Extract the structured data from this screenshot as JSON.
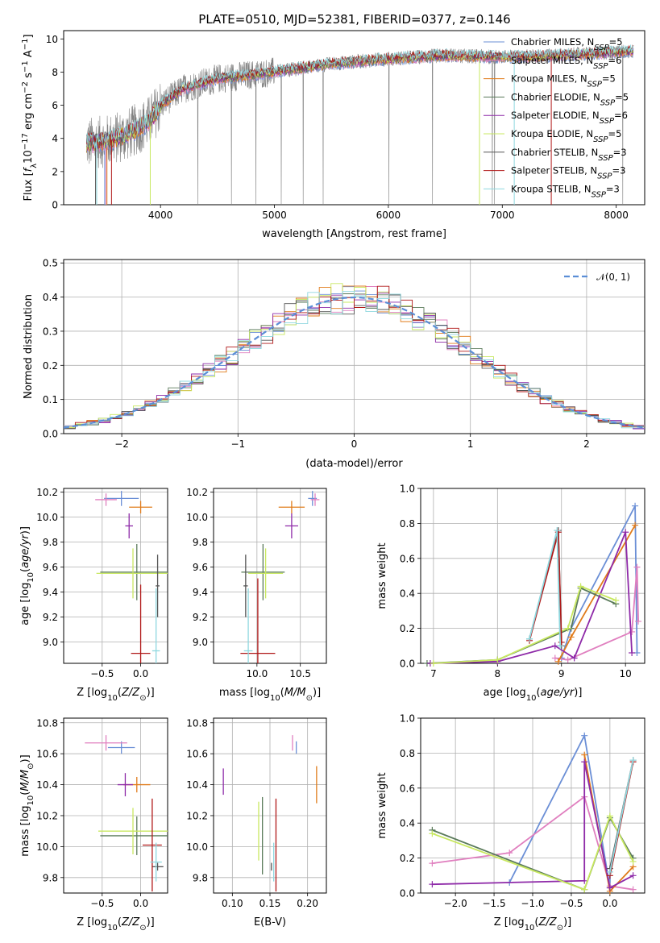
{
  "figure": {
    "title": "PLATE=0510, MJD=52381, FIBERID=0377, z=0.146"
  },
  "colors": {
    "Chabrier MILES": "#6b8fd6",
    "Salpeter MILES": "#e07fbf",
    "Kroupa MILES": "#e07b1a",
    "Chabrier ELODIE": "#5a7a5a",
    "Salpeter ELODIE": "#8e2aa8",
    "Kroupa ELODIE": "#c8e860",
    "Chabrier STELIB": "#555555",
    "Salpeter STELIB": "#b01818",
    "Kroupa STELIB": "#8fd8df",
    "data": "#808080",
    "normal": "#5b8ed6"
  },
  "chart_data": [
    {
      "id": "spectrum",
      "type": "line",
      "title": "PLATE=0510, MJD=52381, FIBERID=0377, z=0.146",
      "xlabel": "wavelength [Angstrom, rest frame]",
      "ylabel": "Flux [f_λ10^-17 erg cm^-2 s^-1 A^-1]",
      "xlim": [
        3150,
        8250
      ],
      "ylim": [
        0,
        10.5
      ],
      "xticks": [
        4000,
        5000,
        6000,
        7000,
        8000
      ],
      "yticks": [
        0,
        2,
        4,
        6,
        8,
        10
      ],
      "grid": false,
      "legend_position": "right",
      "data_continuum": {
        "x": [
          3350,
          3500,
          3700,
          3900,
          4000,
          4200,
          4500,
          5000,
          5500,
          6000,
          6500,
          7000,
          7500,
          8000,
          8150
        ],
        "y": [
          3.7,
          3.8,
          4.2,
          5.0,
          6.0,
          7.0,
          7.6,
          8.0,
          8.5,
          8.8,
          9.0,
          8.9,
          9.0,
          9.2,
          9.3
        ]
      },
      "legend": [
        "Chabrier MILES, N_SSP=5",
        "Salpeter MILES, N_SSP=6",
        "Kroupa MILES, N_SSP=5",
        "Chabrier ELODIE, N_SSP=5",
        "Salpeter ELODIE, N_SSP=6",
        "Kroupa ELODIE, N_SSP=5",
        "Chabrier STELIB, N_SSP=3",
        "Salpeter STELIB, N_SSP=3",
        "Kroupa STELIB, N_SSP=3"
      ]
    },
    {
      "id": "residuals",
      "type": "histogram",
      "xlabel": "(data-model)/error",
      "ylabel": "Normed distribution",
      "xlim": [
        -2.5,
        2.5
      ],
      "ylim": [
        0,
        0.51
      ],
      "xticks": [
        -2,
        -1,
        0,
        1,
        2
      ],
      "yticks": [
        0.0,
        0.1,
        0.2,
        0.3,
        0.4,
        0.5
      ],
      "grid": true,
      "legend_position": "top-right",
      "legend": [
        "𝒩(0, 1)"
      ],
      "bin_width": 0.1
    },
    {
      "id": "age_vs_Z",
      "type": "scatter",
      "xlabel": "Z [log10(Z/Z⊙)]",
      "ylabel": "age [log10(age/yr)]",
      "xlim": [
        -1.0,
        0.35
      ],
      "ylim": [
        8.83,
        10.23
      ],
      "xticks": [
        -0.5,
        0.0
      ],
      "yticks": [
        9.0,
        9.2,
        9.4,
        9.6,
        9.8,
        10.0,
        10.2
      ],
      "grid": true,
      "points": [
        {
          "model": "Chabrier MILES",
          "x": -0.25,
          "xerr": 0.45,
          "y": 10.15,
          "yerr": 0.12
        },
        {
          "model": "Salpeter MILES",
          "x": -0.45,
          "xerr": 0.28,
          "y": 10.14,
          "yerr": 0.1
        },
        {
          "model": "Kroupa MILES",
          "x": 0.0,
          "xerr": 0.3,
          "y": 10.08,
          "yerr": 0.1
        },
        {
          "model": "Chabrier ELODIE",
          "x": -0.05,
          "xerr": 0.95,
          "y": 9.56,
          "yerr": 0.45
        },
        {
          "model": "Salpeter ELODIE",
          "x": -0.15,
          "xerr": 0.1,
          "y": 9.93,
          "yerr": 0.2
        },
        {
          "model": "Kroupa ELODIE",
          "x": -0.1,
          "xerr": 0.95,
          "y": 9.55,
          "yerr": 0.4
        },
        {
          "model": "Chabrier STELIB",
          "x": 0.22,
          "xerr": 0.05,
          "y": 9.45,
          "yerr": 0.5
        },
        {
          "model": "Salpeter STELIB",
          "x": 0.0,
          "xerr": 0.25,
          "y": 8.91,
          "yerr": 1.1
        },
        {
          "model": "Kroupa STELIB",
          "x": 0.2,
          "xerr": 0.1,
          "y": 8.93,
          "yerr": 1.0
        }
      ]
    },
    {
      "id": "age_vs_mass",
      "type": "scatter",
      "xlabel": "mass [log10(M/M⊙)]",
      "ylabel": "",
      "xlim": [
        9.5,
        10.8
      ],
      "ylim": [
        8.83,
        10.23
      ],
      "xticks": [
        10.0,
        10.5
      ],
      "yticks": [
        9.0,
        9.2,
        9.4,
        9.6,
        9.8,
        10.0,
        10.2
      ],
      "grid": true,
      "points": [
        {
          "model": "Chabrier MILES",
          "x": 10.64,
          "xerr": 0.1,
          "y": 10.15,
          "yerr": 0.12
        },
        {
          "model": "Salpeter MILES",
          "x": 10.67,
          "xerr": 0.1,
          "y": 10.14,
          "yerr": 0.1
        },
        {
          "model": "Kroupa MILES",
          "x": 10.4,
          "xerr": 0.3,
          "y": 10.08,
          "yerr": 0.1
        },
        {
          "model": "Chabrier ELODIE",
          "x": 10.07,
          "xerr": 0.5,
          "y": 9.56,
          "yerr": 0.45
        },
        {
          "model": "Salpeter ELODIE",
          "x": 10.4,
          "xerr": 0.15,
          "y": 9.93,
          "yerr": 0.2
        },
        {
          "model": "Kroupa ELODIE",
          "x": 10.1,
          "xerr": 0.4,
          "y": 9.55,
          "yerr": 0.4
        },
        {
          "model": "Chabrier STELIB",
          "x": 9.87,
          "xerr": 0.05,
          "y": 9.45,
          "yerr": 0.5
        },
        {
          "model": "Salpeter STELIB",
          "x": 10.01,
          "xerr": 0.4,
          "y": 8.91,
          "yerr": 1.2
        },
        {
          "model": "Kroupa STELIB",
          "x": 9.9,
          "xerr": 0.1,
          "y": 8.93,
          "yerr": 1.0
        }
      ]
    },
    {
      "id": "weight_vs_age",
      "type": "line",
      "xlabel": "age [log10(age/yr)]",
      "ylabel": "mass weight",
      "xlim": [
        6.8,
        10.3
      ],
      "ylim": [
        0,
        1.0
      ],
      "xticks": [
        7,
        8,
        9,
        10
      ],
      "yticks": [
        0.0,
        0.2,
        0.4,
        0.6,
        0.8,
        1.0
      ],
      "grid": true,
      "series": [
        {
          "model": "Chabrier MILES",
          "points": [
            [
              9.0,
              0.03
            ],
            [
              9.15,
              0.2
            ],
            [
              10.15,
              0.9
            ],
            [
              10.18,
              0.06
            ]
          ]
        },
        {
          "model": "Salpeter MILES",
          "points": [
            [
              8.9,
              0.03
            ],
            [
              9.1,
              0.02
            ],
            [
              10.1,
              0.18
            ],
            [
              10.18,
              0.55
            ],
            [
              10.2,
              0.24
            ]
          ]
        },
        {
          "model": "Kroupa MILES",
          "points": [
            [
              8.95,
              0.01
            ],
            [
              9.15,
              0.15
            ],
            [
              10.15,
              0.79
            ]
          ]
        },
        {
          "model": "Chabrier ELODIE",
          "points": [
            [
              6.9,
              0.0
            ],
            [
              8.0,
              0.02
            ],
            [
              9.15,
              0.2
            ],
            [
              9.3,
              0.43
            ],
            [
              9.85,
              0.34
            ]
          ]
        },
        {
          "model": "Salpeter ELODIE",
          "points": [
            [
              6.95,
              0.0
            ],
            [
              8.0,
              0.01
            ],
            [
              8.9,
              0.1
            ],
            [
              9.2,
              0.03
            ],
            [
              10.0,
              0.75
            ],
            [
              10.1,
              0.06
            ]
          ]
        },
        {
          "model": "Kroupa ELODIE",
          "points": [
            [
              7.0,
              0.0
            ],
            [
              8.0,
              0.02
            ],
            [
              9.1,
              0.2
            ],
            [
              9.3,
              0.44
            ],
            [
              9.85,
              0.36
            ]
          ]
        },
        {
          "model": "Chabrier STELIB",
          "points": [
            [
              8.5,
              0.14
            ],
            [
              8.95,
              0.76
            ],
            [
              9.0,
              0.1
            ]
          ]
        },
        {
          "model": "Salpeter STELIB",
          "points": [
            [
              8.5,
              0.13
            ],
            [
              8.95,
              0.75
            ],
            [
              9.0,
              0.12
            ]
          ]
        },
        {
          "model": "Kroupa STELIB",
          "points": [
            [
              8.5,
              0.14
            ],
            [
              8.93,
              0.76
            ],
            [
              8.98,
              0.1
            ]
          ]
        }
      ]
    },
    {
      "id": "mass_vs_Z",
      "type": "scatter",
      "xlabel": "Z [log10(Z/Z⊙)]",
      "ylabel": "mass [log10(M/M⊙)]",
      "xlim": [
        -1.0,
        0.35
      ],
      "ylim": [
        9.7,
        10.83
      ],
      "xticks": [
        -0.5,
        0.0
      ],
      "yticks": [
        9.8,
        10.0,
        10.2,
        10.4,
        10.6,
        10.8
      ],
      "grid": true,
      "points": [
        {
          "model": "Chabrier MILES",
          "x": -0.25,
          "xerr": 0.35,
          "y": 10.64,
          "yerr": 0.08
        },
        {
          "model": "Salpeter MILES",
          "x": -0.45,
          "xerr": 0.55,
          "y": 10.67,
          "yerr": 0.1
        },
        {
          "model": "Kroupa MILES",
          "x": -0.05,
          "xerr": 0.35,
          "y": 10.4,
          "yerr": 0.1
        },
        {
          "model": "Chabrier ELODIE",
          "x": -0.05,
          "xerr": 0.95,
          "y": 10.07,
          "yerr": 0.25
        },
        {
          "model": "Salpeter ELODIE",
          "x": -0.2,
          "xerr": 0.2,
          "y": 10.4,
          "yerr": 0.15
        },
        {
          "model": "Kroupa ELODIE",
          "x": -0.1,
          "xerr": 0.9,
          "y": 10.1,
          "yerr": 0.3
        },
        {
          "model": "Chabrier STELIB",
          "x": 0.22,
          "xerr": 0.15,
          "y": 9.87,
          "yerr": 0.05
        },
        {
          "model": "Salpeter STELIB",
          "x": 0.15,
          "xerr": 0.25,
          "y": 10.01,
          "yerr": 0.6
        },
        {
          "model": "Kroupa STELIB",
          "x": 0.2,
          "xerr": 0.15,
          "y": 9.9,
          "yerr": 0.25
        }
      ]
    },
    {
      "id": "mass_vs_EBV",
      "type": "scatter",
      "xlabel": "E(B-V)",
      "ylabel": "",
      "xlim": [
        0.075,
        0.225
      ],
      "ylim": [
        9.7,
        10.83
      ],
      "xticks": [
        0.1,
        0.15,
        0.2
      ],
      "xtick_labels": [
        "0.10",
        "0.15",
        "0.20"
      ],
      "yticks": [
        9.8,
        10.0,
        10.2,
        10.4,
        10.6,
        10.8
      ],
      "grid": true,
      "points": [
        {
          "model": "Chabrier MILES",
          "x": 0.185,
          "y": 10.64,
          "yerr": 0.08
        },
        {
          "model": "Salpeter MILES",
          "x": 0.18,
          "y": 10.67,
          "yerr": 0.1
        },
        {
          "model": "Kroupa MILES",
          "x": 0.212,
          "y": 10.4,
          "yerr": 0.24
        },
        {
          "model": "Chabrier ELODIE",
          "x": 0.14,
          "y": 10.07,
          "yerr": 0.5
        },
        {
          "model": "Salpeter ELODIE",
          "x": 0.088,
          "y": 10.42,
          "yerr": 0.17
        },
        {
          "model": "Kroupa ELODIE",
          "x": 0.135,
          "y": 10.1,
          "yerr": 0.38
        },
        {
          "model": "Chabrier STELIB",
          "x": 0.152,
          "y": 9.87,
          "yerr": 0.05
        },
        {
          "model": "Salpeter STELIB",
          "x": 0.158,
          "y": 10.01,
          "yerr": 0.6
        },
        {
          "model": "Kroupa STELIB",
          "x": 0.155,
          "y": 9.9,
          "yerr": 0.25
        }
      ]
    },
    {
      "id": "weight_vs_Z",
      "type": "line",
      "xlabel": "Z [log10(Z/Z⊙)]",
      "ylabel": "mass weight",
      "xlim": [
        -2.45,
        0.45
      ],
      "ylim": [
        0,
        1.0
      ],
      "xticks": [
        -2.0,
        -1.5,
        -1.0,
        -0.5,
        0.0
      ],
      "yticks": [
        0.0,
        0.2,
        0.4,
        0.6,
        0.8,
        1.0
      ],
      "grid": true,
      "series": [
        {
          "model": "Chabrier MILES",
          "points": [
            [
              -1.3,
              0.06
            ],
            [
              -0.33,
              0.9
            ],
            [
              0.0,
              0.03
            ],
            [
              0.0,
              0.12
            ]
          ]
        },
        {
          "model": "Salpeter MILES",
          "points": [
            [
              -2.3,
              0.17
            ],
            [
              -1.3,
              0.23
            ],
            [
              -0.33,
              0.55
            ],
            [
              0.0,
              0.04
            ],
            [
              0.3,
              0.02
            ]
          ]
        },
        {
          "model": "Kroupa MILES",
          "points": [
            [
              -0.33,
              0.79
            ],
            [
              0.0,
              0.01
            ],
            [
              0.3,
              0.15
            ]
          ]
        },
        {
          "model": "Chabrier ELODIE",
          "points": [
            [
              -2.3,
              0.36
            ],
            [
              -0.33,
              0.02
            ],
            [
              0.0,
              0.43
            ],
            [
              0.3,
              0.2
            ]
          ]
        },
        {
          "model": "Salpeter ELODIE",
          "points": [
            [
              -2.3,
              0.05
            ],
            [
              -0.33,
              0.07
            ],
            [
              -0.33,
              0.75
            ],
            [
              0.0,
              0.03
            ],
            [
              0.3,
              0.1
            ]
          ]
        },
        {
          "model": "Kroupa ELODIE",
          "points": [
            [
              -2.3,
              0.34
            ],
            [
              -0.33,
              0.02
            ],
            [
              0.0,
              0.44
            ],
            [
              0.3,
              0.18
            ]
          ]
        },
        {
          "model": "Chabrier STELIB",
          "points": [
            [
              0.0,
              0.14
            ],
            [
              0.3,
              0.76
            ]
          ]
        },
        {
          "model": "Salpeter STELIB",
          "points": [
            [
              0.0,
              0.1
            ],
            [
              0.3,
              0.75
            ]
          ]
        },
        {
          "model": "Kroupa STELIB",
          "points": [
            [
              0.0,
              0.12
            ],
            [
              0.3,
              0.76
            ]
          ]
        }
      ]
    }
  ]
}
